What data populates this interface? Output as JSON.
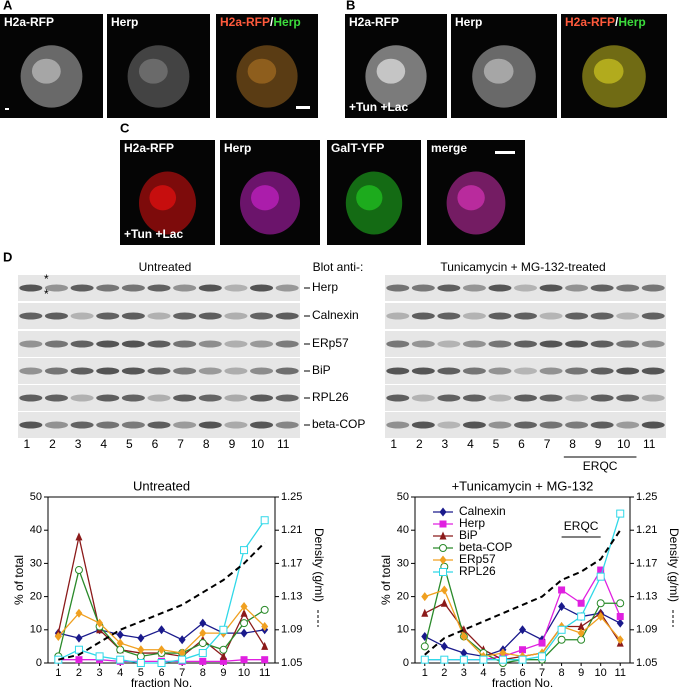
{
  "figure": {
    "A": {
      "label": "A",
      "images": [
        [
          {
            "text": "H2a-RFP",
            "color": "#ffffff"
          }
        ],
        [
          {
            "text": "Herp",
            "color": "#ffffff"
          }
        ],
        [
          {
            "text": "H2a-RFP",
            "color": "#ff5a3c"
          },
          {
            "text": "/",
            "color": "#ffffff"
          },
          {
            "text": "Herp",
            "color": "#3cdc3c"
          }
        ]
      ]
    },
    "B": {
      "label": "B",
      "note": "+Tun +Lac",
      "images": [
        [
          {
            "text": "H2a-RFP",
            "color": "#ffffff"
          }
        ],
        [
          {
            "text": "Herp",
            "color": "#ffffff"
          }
        ],
        [
          {
            "text": "H2a-RFP",
            "color": "#ff5a3c"
          },
          {
            "text": "/",
            "color": "#ffffff"
          },
          {
            "text": "Herp",
            "color": "#3cdc3c"
          }
        ]
      ]
    },
    "C": {
      "label": "C",
      "note": "+Tun +Lac",
      "images": [
        [
          {
            "text": "H2a-RFP",
            "color": "#ffffff"
          }
        ],
        [
          {
            "text": "Herp",
            "color": "#ffffff"
          }
        ],
        [
          {
            "text": "GalT-YFP",
            "color": "#ffffff"
          }
        ],
        [
          {
            "text": "merge",
            "color": "#ffffff"
          }
        ]
      ]
    },
    "D": {
      "label": "D",
      "left_title": "Untreated",
      "middle_title": "Blot anti-:",
      "right_title": "Tunicamycin + MG-132-treated",
      "rows": [
        "Herp",
        "Calnexin",
        "ERp57",
        "BiP",
        "RPL26",
        "beta-COP"
      ],
      "lanes": [
        "1",
        "2",
        "3",
        "4",
        "5",
        "6",
        "7",
        "8",
        "9",
        "10",
        "11"
      ],
      "bracket": "ERQC",
      "asterisk": "*"
    }
  },
  "chart_data": [
    {
      "type": "line",
      "title": "Untreated",
      "x_label": "fraction No.",
      "y_label": "% of total",
      "y2_label": "Density (g/ml)",
      "categories": [
        "1",
        "2",
        "3",
        "4",
        "5",
        "6",
        "7",
        "8",
        "9",
        "10",
        "11"
      ],
      "ylim": [
        0,
        50
      ],
      "yticks": [
        0,
        10,
        20,
        30,
        40,
        50
      ],
      "y2lim": [
        1.05,
        1.25
      ],
      "y2ticks": [
        1.05,
        1.09,
        1.13,
        1.17,
        1.21,
        1.25
      ],
      "series": [
        {
          "color": "#1a1a8c",
          "marker": "diamond",
          "values": [
            9,
            7.5,
            10,
            8.5,
            7.5,
            10,
            7,
            12,
            9,
            9,
            10
          ]
        },
        {
          "color": "#e020e0",
          "marker": "square",
          "values": [
            1,
            1,
            1,
            0.5,
            0.5,
            0.5,
            0.5,
            0.5,
            0.5,
            1,
            1
          ]
        },
        {
          "color": "#8b1a1a",
          "marker": "triangle",
          "values": [
            9,
            38,
            10,
            4,
            3,
            3,
            2,
            7,
            2,
            15,
            5
          ]
        },
        {
          "color": "#2a8a2a",
          "marker": "circle-open",
          "values": [
            2,
            28,
            11,
            4,
            2,
            3,
            3,
            6,
            4,
            12,
            16
          ]
        },
        {
          "color": "#f0a020",
          "marker": "diamond",
          "values": [
            8,
            15,
            12,
            6,
            4,
            4,
            3,
            9,
            9,
            17,
            11
          ]
        },
        {
          "color": "#30d8e8",
          "marker": "square-open",
          "values": [
            1,
            4,
            2,
            1,
            0,
            0,
            1,
            3,
            10,
            34,
            43
          ]
        },
        {
          "color": "#000000",
          "marker": "none",
          "linestyle": "dashed",
          "axis": "y2",
          "values": [
            1.054,
            1.06,
            1.075,
            1.09,
            1.1,
            1.11,
            1.12,
            1.135,
            1.15,
            1.17,
            1.195
          ]
        }
      ]
    },
    {
      "type": "line",
      "title": "+Tunicamycin + MG-132",
      "x_label": "fraction No.",
      "y_label": "% of total",
      "y2_label": "Density (g/ml)",
      "annotation": "ERQC",
      "categories": [
        "1",
        "2",
        "3",
        "4",
        "5",
        "6",
        "7",
        "8",
        "9",
        "10",
        "11"
      ],
      "ylim": [
        0,
        50
      ],
      "yticks": [
        0,
        10,
        20,
        30,
        40,
        50
      ],
      "y2lim": [
        1.05,
        1.25
      ],
      "y2ticks": [
        1.05,
        1.09,
        1.13,
        1.17,
        1.21,
        1.25
      ],
      "series": [
        {
          "name": "Calnexin",
          "color": "#1a1a8c",
          "marker": "diamond",
          "values": [
            8,
            5,
            3,
            2,
            4,
            10,
            7,
            17,
            14,
            15,
            12
          ]
        },
        {
          "name": "Herp",
          "color": "#e020e0",
          "marker": "square",
          "values": [
            1,
            1,
            1,
            1,
            2,
            4,
            6,
            22,
            18,
            28,
            14
          ]
        },
        {
          "name": "BiP",
          "color": "#8b1a1a",
          "marker": "triangle",
          "values": [
            15,
            18,
            10,
            4,
            1,
            2,
            3,
            11,
            11,
            15,
            6
          ]
        },
        {
          "name": "beta-COP",
          "color": "#2a8a2a",
          "marker": "circle-open",
          "values": [
            5,
            29,
            8,
            3,
            0,
            1,
            1,
            7,
            7,
            18,
            18
          ]
        },
        {
          "name": "ERp57",
          "color": "#f0a020",
          "marker": "diamond",
          "values": [
            20,
            22,
            8,
            2,
            3,
            2,
            3,
            11,
            9,
            14,
            7
          ]
        },
        {
          "name": "RPL26",
          "color": "#30d8e8",
          "marker": "square-open",
          "values": [
            1,
            1,
            1,
            1,
            1,
            1,
            2,
            10,
            14,
            26,
            45
          ]
        },
        {
          "color": "#000000",
          "marker": "none",
          "linestyle": "dashed",
          "axis": "y2",
          "values": [
            1.06,
            1.08,
            1.09,
            1.1,
            1.11,
            1.12,
            1.13,
            1.15,
            1.16,
            1.175,
            1.21
          ]
        }
      ]
    }
  ]
}
